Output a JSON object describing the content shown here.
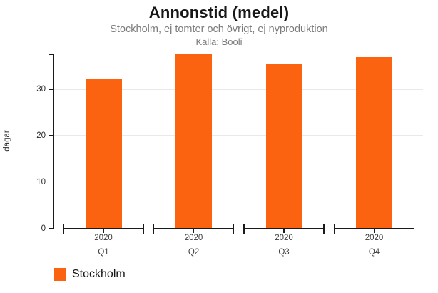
{
  "header": {
    "title": "Annonstid (medel)",
    "subtitle": "Stockholm, ej tomter och övrigt, ej nyproduktion",
    "source": "Källa: Booli"
  },
  "chart_data": {
    "type": "bar",
    "title": "Annonstid (medel)",
    "subtitle": "Stockholm, ej tomter och övrigt, ej nyproduktion",
    "source_note": "Källa: Booli",
    "ylabel": "dagar",
    "ylim": [
      0,
      37.7
    ],
    "yticks": [
      0,
      10,
      20,
      30
    ],
    "grid": true,
    "categories": [
      {
        "year": "2020",
        "quarter": "Q1"
      },
      {
        "year": "2020",
        "quarter": "Q2"
      },
      {
        "year": "2020",
        "quarter": "Q3"
      },
      {
        "year": "2020",
        "quarter": "Q4"
      }
    ],
    "series": [
      {
        "name": "Stockholm",
        "color": "#fb6311",
        "values": [
          32.4,
          37.7,
          35.6,
          36.9
        ]
      }
    ],
    "legend_position": "bottom-left",
    "axis_color": "#1a1a1a",
    "grid_color": "#e9e9e9"
  }
}
